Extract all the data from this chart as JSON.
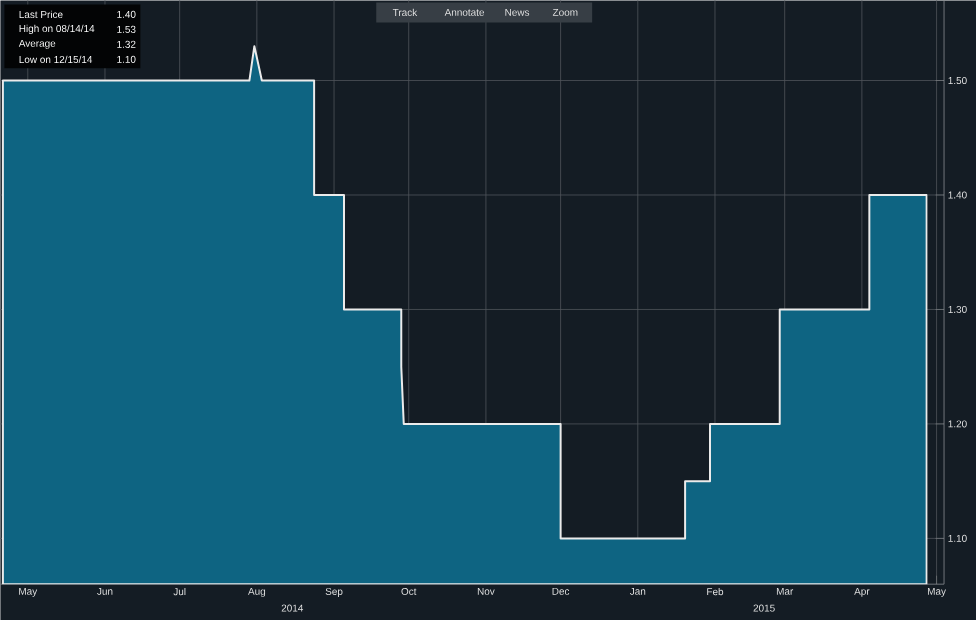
{
  "chart_data": {
    "type": "area",
    "x": [
      "2014-05-05",
      "2014-08-12",
      "2014-08-14",
      "2014-08-16",
      "2014-08-17",
      "2014-09-07",
      "2014-09-07",
      "2014-09-19",
      "2014-09-19",
      "2014-10-12",
      "2014-10-12",
      "2014-10-13",
      "2014-12-15",
      "2014-12-15",
      "2015-02-03",
      "2015-02-03",
      "2015-02-13",
      "2015-02-13",
      "2015-03-13",
      "2015-03-13",
      "2015-04-18",
      "2015-04-18",
      "2015-05-11"
    ],
    "series": [
      {
        "color": "#0e6482",
        "values": [
          1.5,
          1.5,
          1.53,
          1.51,
          1.5,
          1.5,
          1.4,
          1.4,
          1.3,
          1.3,
          1.25,
          1.2,
          1.2,
          1.1,
          1.1,
          1.15,
          1.15,
          1.2,
          1.2,
          1.3,
          1.3,
          1.4,
          1.4
        ]
      }
    ],
    "xlim": [
      "2014-05-04",
      "2015-05-18"
    ],
    "xticks": [
      {
        "value": "2014-05-15",
        "label": "May"
      },
      {
        "value": "2014-06-15",
        "label": "Jun"
      },
      {
        "value": "2014-07-15",
        "label": "Jul"
      },
      {
        "value": "2014-08-15",
        "label": "Aug"
      },
      {
        "value": "2014-09-15",
        "label": "Sep"
      },
      {
        "value": "2014-10-15",
        "label": "Oct"
      },
      {
        "value": "2014-11-15",
        "label": "Nov"
      },
      {
        "value": "2014-12-15",
        "label": "Dec"
      },
      {
        "value": "2015-01-15",
        "label": "Jan"
      },
      {
        "value": "2015-02-15",
        "label": "Feb"
      },
      {
        "value": "2015-03-15",
        "label": "Mar"
      },
      {
        "value": "2015-04-15",
        "label": "Apr"
      },
      {
        "value": "2015-05-15",
        "label": "May"
      }
    ],
    "ylim": [
      1.06,
      1.57
    ],
    "yticks": [
      {
        "value": 1.1,
        "label": "1.10"
      },
      {
        "value": 1.2,
        "label": "1.20"
      },
      {
        "value": 1.3,
        "label": "1.30"
      },
      {
        "value": 1.4,
        "label": "1.40"
      },
      {
        "value": 1.5,
        "label": "1.50"
      }
    ],
    "grid": true,
    "annotations": [
      "Last Price",
      "1.40",
      "High on 08/14/14",
      "1.53",
      "Average",
      "1.32",
      "Low on 12/15/14",
      "1.10",
      "Track",
      "Annotate",
      "News",
      "Zoom",
      "2014",
      "2015"
    ]
  }
}
